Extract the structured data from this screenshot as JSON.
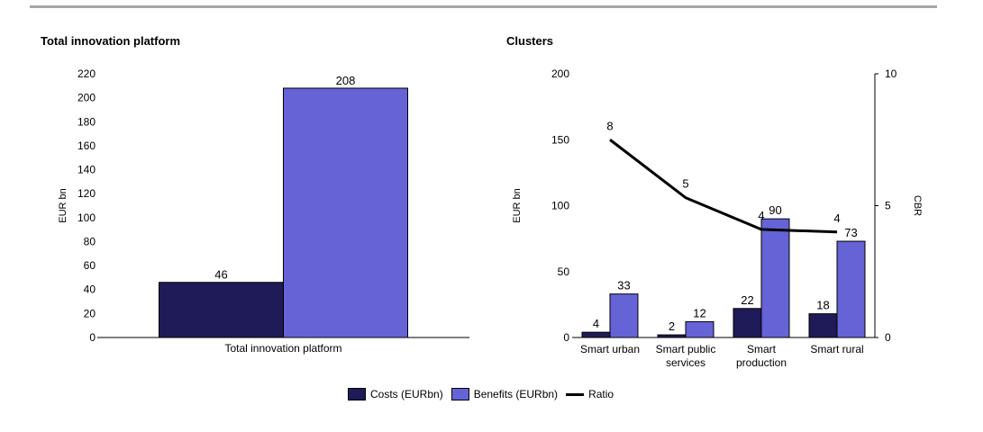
{
  "colors": {
    "costs": "#1e1b58",
    "benefits": "#6663d6",
    "ratio": "#000000",
    "rule": "#a6a6a6"
  },
  "legend": {
    "costs": "Costs (EURbn)",
    "benefits": "Benefits (EURbn)",
    "ratio": "Ratio"
  },
  "chart_data": [
    {
      "type": "bar",
      "title": "Total innovation platform",
      "categories": [
        "Total innovation platform"
      ],
      "series": [
        {
          "name": "Costs (EURbn)",
          "values": [
            46
          ]
        },
        {
          "name": "Benefits (EURbn)",
          "values": [
            208
          ]
        }
      ],
      "ylabel": "EUR bn",
      "ylim": [
        0,
        220
      ],
      "yticks": [
        0,
        20,
        40,
        60,
        80,
        100,
        120,
        140,
        160,
        180,
        200,
        220
      ],
      "grid": false,
      "legend_placement": "bottom"
    },
    {
      "type": "bar",
      "title": "Clusters",
      "categories": [
        [
          "Smart urban"
        ],
        [
          "Smart public",
          "services"
        ],
        [
          "Smart",
          "production"
        ],
        [
          "Smart rural"
        ]
      ],
      "series": [
        {
          "name": "Costs (EURbn)",
          "values": [
            4,
            2,
            22,
            18
          ]
        },
        {
          "name": "Benefits (EURbn)",
          "values": [
            33,
            12,
            90,
            73
          ]
        }
      ],
      "ratio": {
        "name": "Ratio",
        "values": [
          7.5,
          5.3,
          4.1,
          4.0
        ],
        "labels": [
          "8",
          "5",
          "4",
          "4"
        ]
      },
      "ylabel": "EUR bn",
      "ylim": [
        0,
        200
      ],
      "yticks": [
        0,
        50,
        100,
        150,
        200
      ],
      "y2label": "CBR",
      "y2lim": [
        0,
        10
      ],
      "y2ticks": [
        0,
        5,
        10
      ],
      "grid": false,
      "legend_placement": "bottom"
    }
  ]
}
